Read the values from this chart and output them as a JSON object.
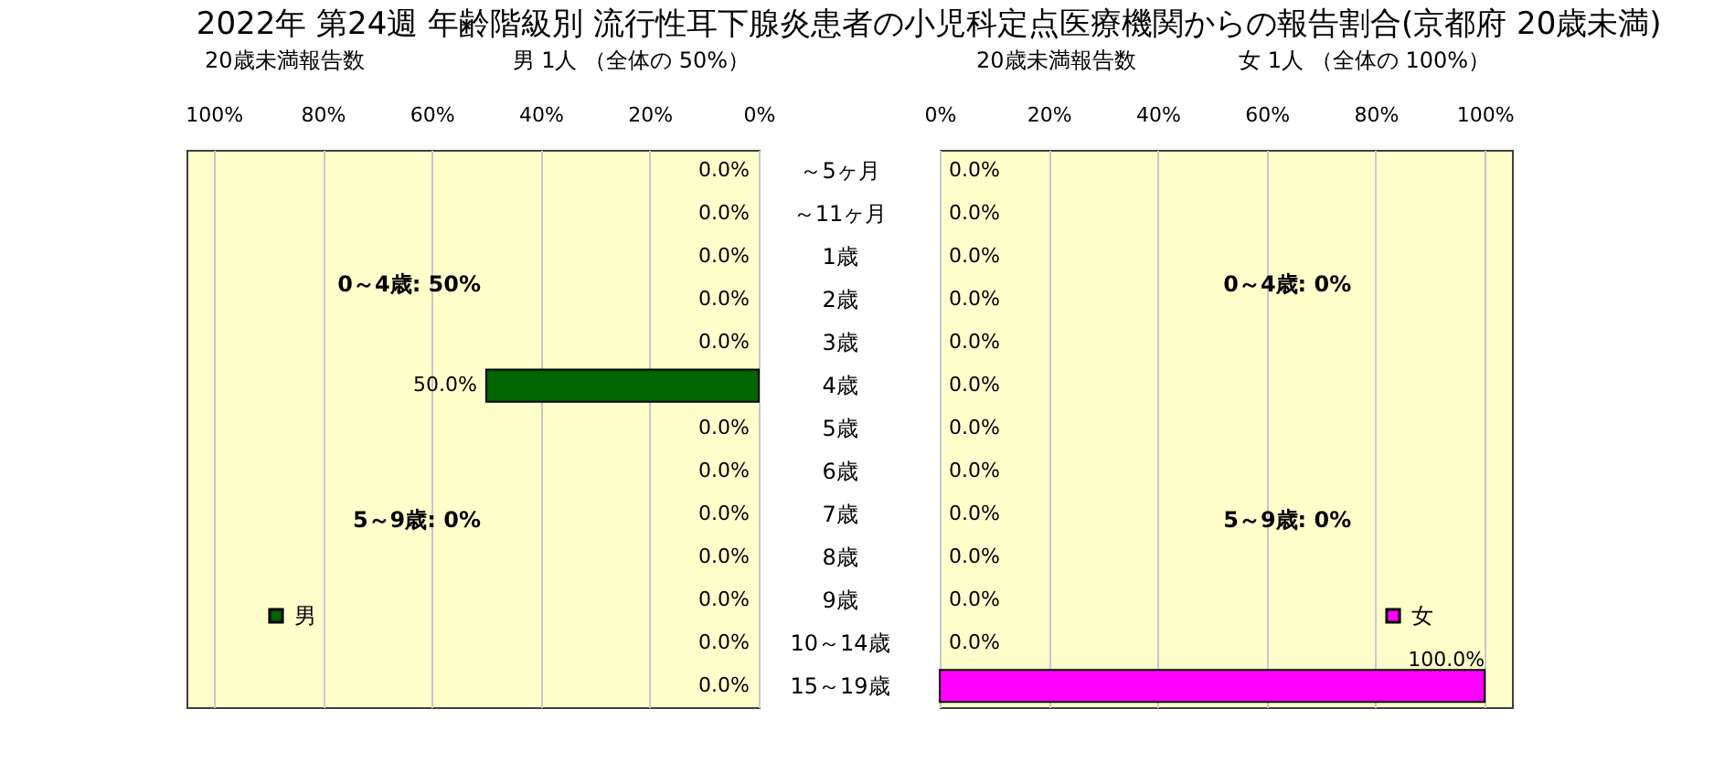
{
  "chart_data": [
    {
      "type": "bar",
      "orientation": "horizontal",
      "title": "2022年 第24週 年齢階級別 流行性耳下腺炎患者の小児科定点医療機関からの報告割合(京都府 20歳未満)",
      "subtitle": "20歳未満報告数",
      "xlabel": "男  1人 （全体の  50%）",
      "categories": [
        "～5ヶ月",
        "～11ヶ月",
        "1歳",
        "2歳",
        "3歳",
        "4歳",
        "5歳",
        "6歳",
        "7歳",
        "8歳",
        "9歳",
        "10～14歳",
        "15～19歳"
      ],
      "series": [
        {
          "name": "男",
          "color": "#006400",
          "values": [
            0,
            0,
            0,
            0,
            0,
            50,
            0,
            0,
            0,
            0,
            0,
            0,
            0
          ],
          "value_labels": [
            "0.0%",
            "0.0%",
            "0.0%",
            "0.0%",
            "0.0%",
            "50.0%",
            "0.0%",
            "0.0%",
            "0.0%",
            "0.0%",
            "0.0%",
            "0.0%",
            "0.0%"
          ]
        }
      ],
      "xlim": [
        105,
        0
      ],
      "xticks": [
        {
          "value": 100,
          "label": "100%"
        },
        {
          "value": 80,
          "label": "80%"
        },
        {
          "value": 60,
          "label": "60%"
        },
        {
          "value": 40,
          "label": "40%"
        },
        {
          "value": 20,
          "label": "20%"
        },
        {
          "value": 0,
          "label": "0%"
        }
      ],
      "grid": "x",
      "legend": "bottom left",
      "annotations": [
        "0～4歳: 50%",
        "5～9歳: 0%"
      ]
    },
    {
      "type": "bar",
      "orientation": "horizontal",
      "subtitle": "20歳未満報告数",
      "xlabel": "女  1人 （全体の  100%）",
      "categories": [
        null,
        null,
        null,
        null,
        null,
        null,
        null,
        null,
        null,
        null,
        null,
        null,
        null
      ],
      "series": [
        {
          "name": "女",
          "color": "#ff00ff",
          "values": [
            0,
            0,
            0,
            0,
            0,
            0,
            0,
            0,
            0,
            0,
            0,
            0,
            100
          ],
          "value_labels": [
            "0.0%",
            "0.0%",
            "0.0%",
            "0.0%",
            "0.0%",
            "0.0%",
            "0.0%",
            "0.0%",
            "0.0%",
            "0.0%",
            "0.0%",
            "0.0%",
            "100.0%"
          ]
        }
      ],
      "xlim": [
        0,
        105
      ],
      "xticks": [
        {
          "value": 0,
          "label": "0%"
        },
        {
          "value": 20,
          "label": "20%"
        },
        {
          "value": 40,
          "label": "40%"
        },
        {
          "value": 60,
          "label": "60%"
        },
        {
          "value": 80,
          "label": "80%"
        },
        {
          "value": 100,
          "label": "100%"
        }
      ],
      "grid": "x",
      "legend": "bottom right",
      "tick_labels": "x",
      "annotations": [
        "0～4歳: 0%",
        "5～9歳: 0%"
      ]
    }
  ]
}
